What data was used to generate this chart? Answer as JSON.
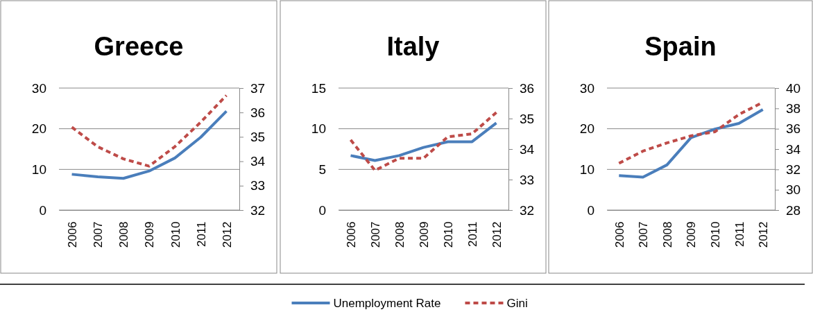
{
  "chart_data": [
    {
      "type": "line",
      "title": "Greece",
      "categories": [
        "2006",
        "2007",
        "2008",
        "2009",
        "2010",
        "2011",
        "2012"
      ],
      "ylim": [
        0,
        30
      ],
      "yticks": [
        0,
        10,
        20,
        30
      ],
      "y2lim": [
        32,
        37
      ],
      "y2ticks": [
        32,
        33,
        34,
        35,
        36,
        37
      ],
      "grid": "y",
      "series": [
        {
          "color": "#4a7ebb",
          "line_style": "solid",
          "values": [
            8.8,
            8.2,
            7.8,
            9.6,
            12.8,
            17.9,
            24.3
          ]
        },
        {
          "color": "#be4b48",
          "line_style": "dashed",
          "axis": "y2",
          "values": [
            35.4,
            34.6,
            34.1,
            33.8,
            34.6,
            35.6,
            36.7
          ]
        }
      ]
    },
    {
      "type": "line",
      "title": "Italy",
      "categories": [
        "2006",
        "2007",
        "2008",
        "2009",
        "2010",
        "2011",
        "2012"
      ],
      "ylim": [
        0,
        15
      ],
      "yticks": [
        0,
        5,
        10,
        15
      ],
      "y2lim": [
        32,
        36
      ],
      "y2ticks": [
        32,
        33,
        34,
        35,
        36
      ],
      "grid": "y",
      "legend": "bottom",
      "series": [
        {
          "name": "Unemployment Rate",
          "color": "#4a7ebb",
          "line_style": "solid",
          "values": [
            6.7,
            6.1,
            6.7,
            7.7,
            8.4,
            8.4,
            10.7
          ]
        },
        {
          "name": "Gini",
          "color": "#be4b48",
          "line_style": "dashed",
          "axis": "y2",
          "values": [
            34.3,
            33.3,
            33.7,
            33.7,
            34.4,
            34.5,
            35.2
          ]
        }
      ]
    },
    {
      "type": "line",
      "title": "Spain",
      "categories": [
        "2006",
        "2007",
        "2008",
        "2009",
        "2010",
        "2011",
        "2012"
      ],
      "ylim": [
        0,
        30
      ],
      "yticks": [
        0,
        10,
        20,
        30
      ],
      "y2lim": [
        28,
        40
      ],
      "y2ticks": [
        28,
        30,
        32,
        34,
        36,
        38,
        40
      ],
      "grid": "y",
      "series": [
        {
          "color": "#4a7ebb",
          "line_style": "solid",
          "values": [
            8.5,
            8.1,
            11.1,
            17.8,
            19.9,
            21.3,
            24.7
          ]
        },
        {
          "color": "#be4b48",
          "line_style": "dashed",
          "axis": "y2",
          "values": [
            32.6,
            33.8,
            34.6,
            35.3,
            35.7,
            37.4,
            38.6
          ]
        }
      ]
    }
  ]
}
